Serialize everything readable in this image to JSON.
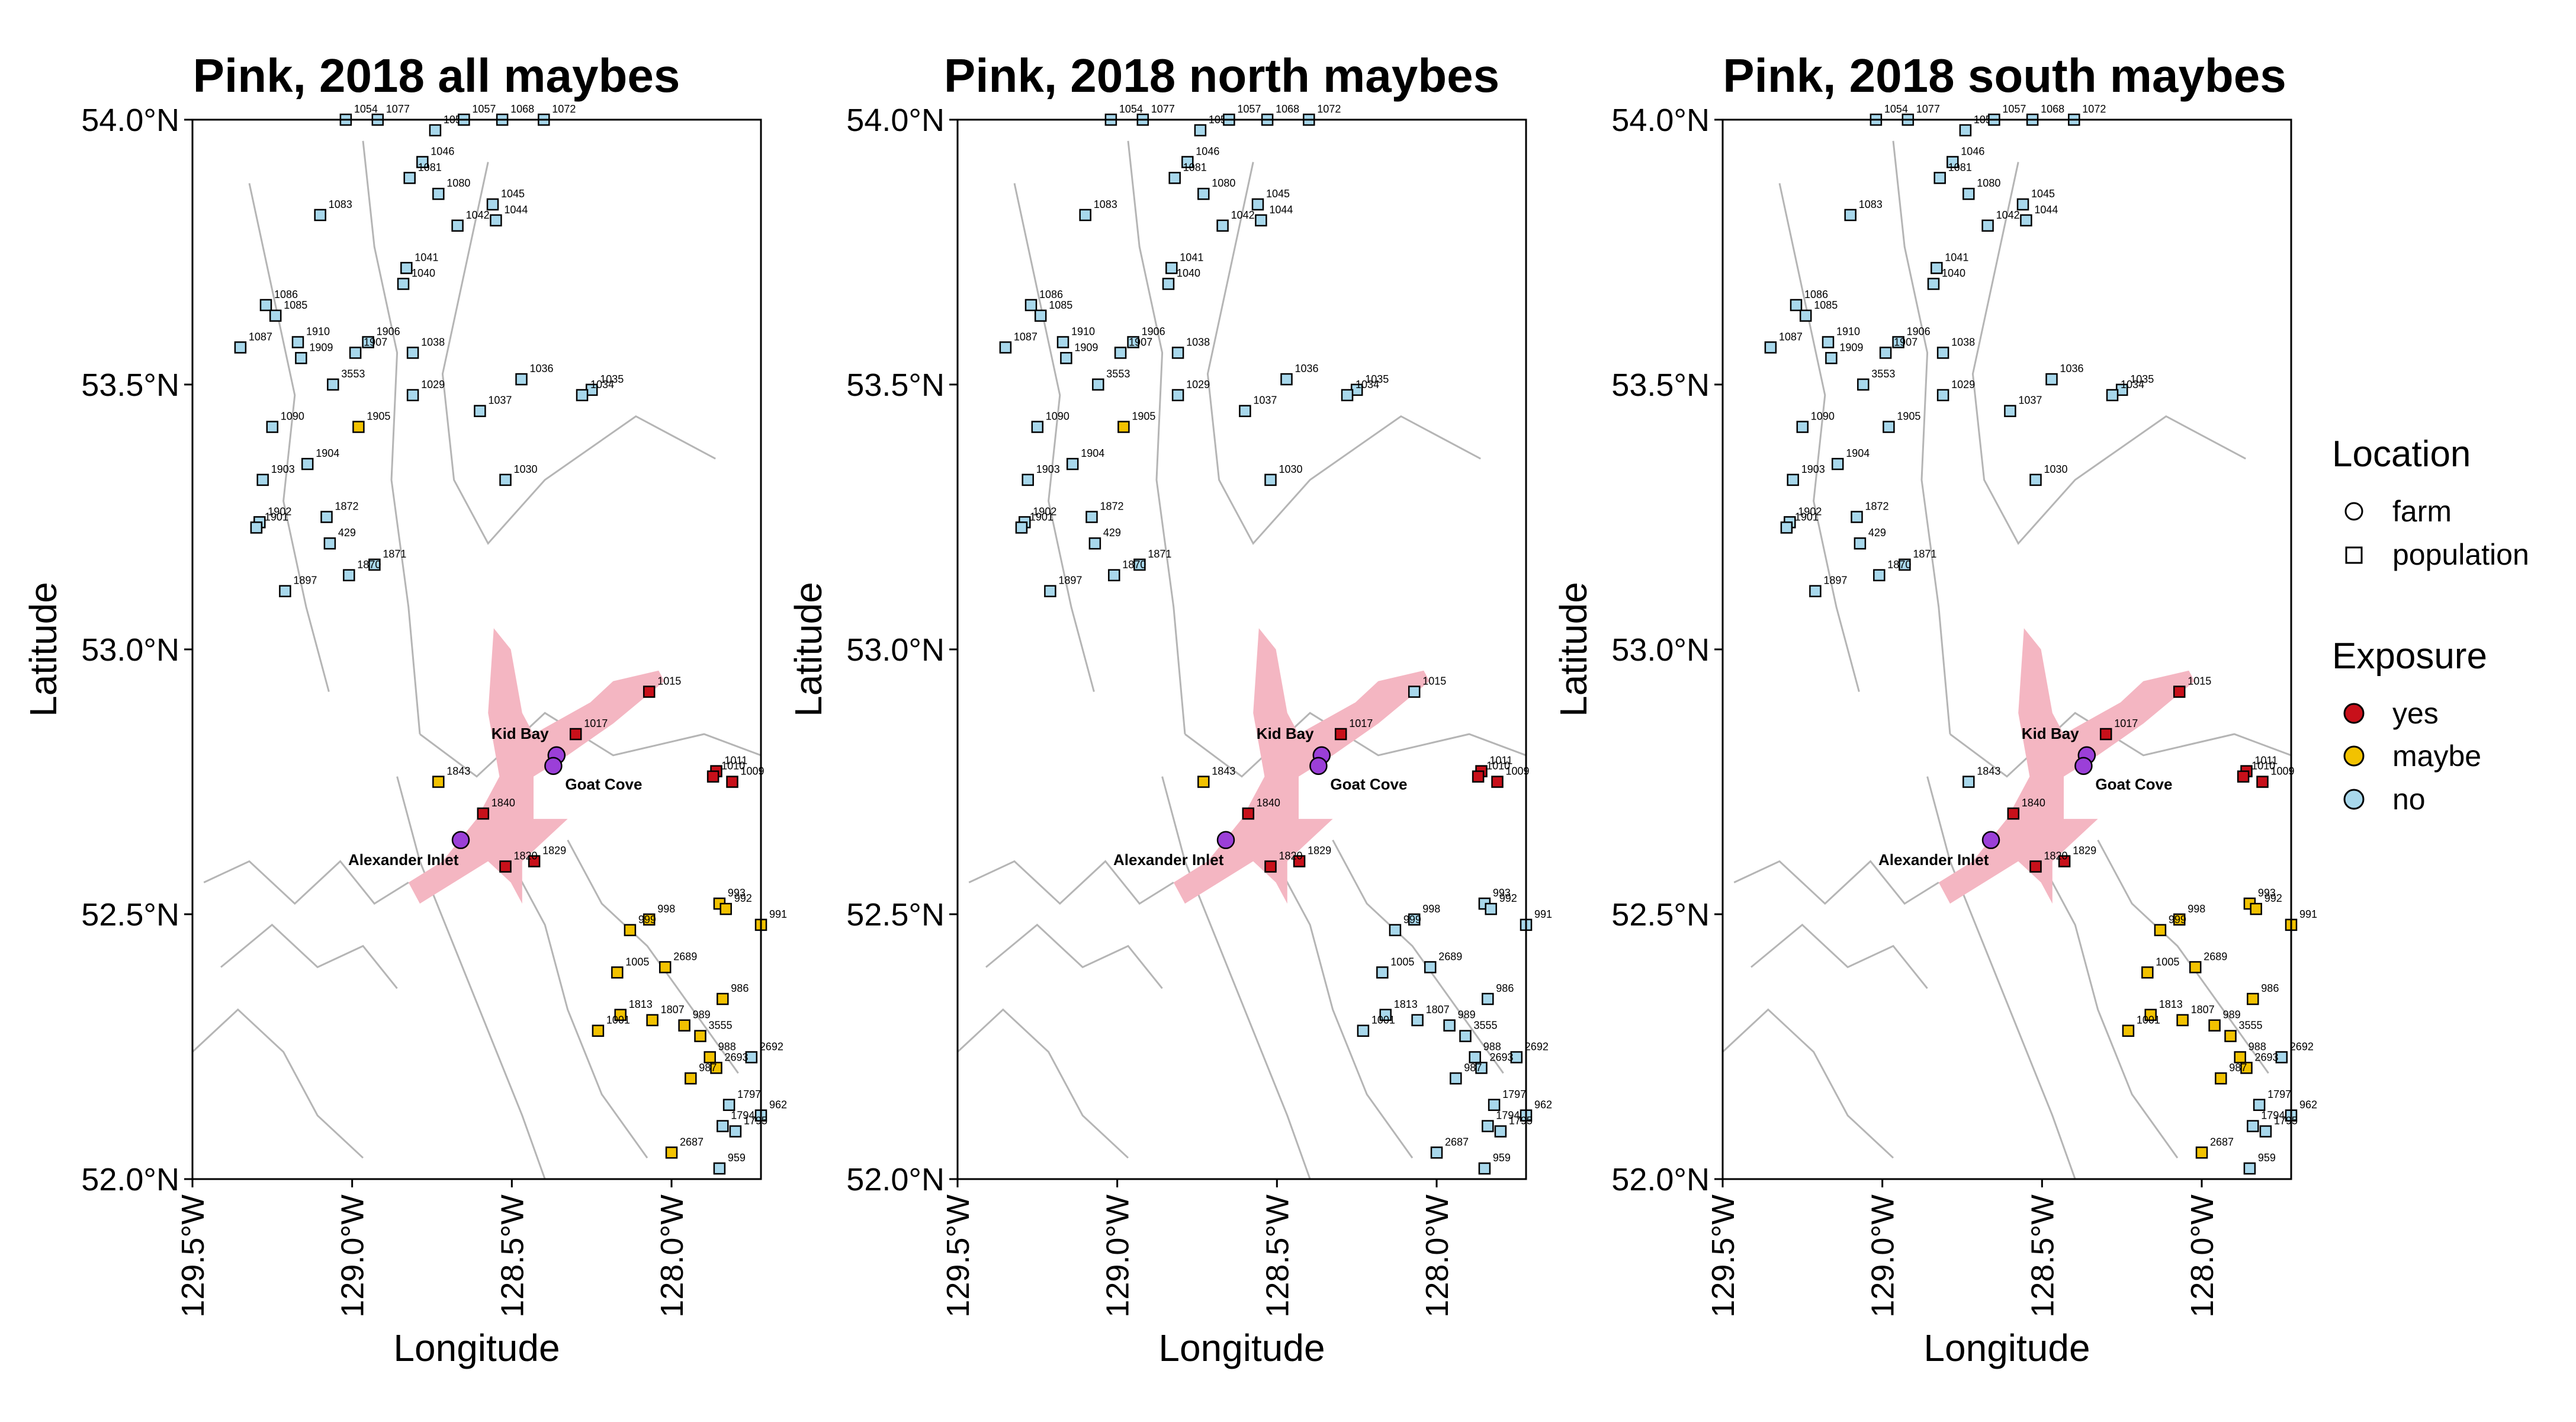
{
  "axes": {
    "x_title": "Longitude",
    "y_title": "Latitude",
    "xlim": [
      -129.5,
      -127.72
    ],
    "ylim": [
      52.0,
      54.0
    ],
    "x_ticks": [
      {
        "value": -129.5,
        "label": "129.5°W"
      },
      {
        "value": -129.0,
        "label": "129.0°W"
      },
      {
        "value": -128.5,
        "label": "128.5°W"
      },
      {
        "value": -128.0,
        "label": "128.0°W"
      }
    ],
    "y_ticks": [
      {
        "value": 54.0,
        "label": "54.0°N"
      },
      {
        "value": 53.5,
        "label": "53.5°N"
      },
      {
        "value": 53.0,
        "label": "53.0°N"
      },
      {
        "value": 52.5,
        "label": "52.5°N"
      },
      {
        "value": 52.0,
        "label": "52.0°N"
      }
    ]
  },
  "legend": {
    "location_title": "Location",
    "location_items": [
      {
        "key": "farm",
        "label": "farm",
        "shape": "circle"
      },
      {
        "key": "population",
        "label": "population",
        "shape": "square"
      }
    ],
    "exposure_title": "Exposure",
    "exposure_items": [
      {
        "key": "yes",
        "label": "yes"
      },
      {
        "key": "maybe",
        "label": "maybe"
      },
      {
        "key": "no",
        "label": "no"
      }
    ]
  },
  "colors": {
    "yes": "#c8101a",
    "maybe": "#f2c200",
    "no": "#a8d8ec",
    "farm": "#9b3fd8",
    "highlight": "#f4b6c2",
    "coastline": "#b5b5b5"
  },
  "farms": [
    {
      "name": "Kid Bay",
      "lon": -128.36,
      "lat": 52.8
    },
    {
      "name": "Goat Cove",
      "lon": -128.37,
      "lat": 52.78
    },
    {
      "name": "Alexander Inlet",
      "lon": -128.66,
      "lat": 52.64
    }
  ],
  "sites": [
    {
      "id": "1054",
      "lon": -129.02,
      "lat": 54.0,
      "north": "no",
      "south": "no"
    },
    {
      "id": "1077",
      "lon": -128.92,
      "lat": 54.0,
      "north": "no",
      "south": "no"
    },
    {
      "id": "1050",
      "lon": -128.74,
      "lat": 53.98,
      "north": "no",
      "south": "no"
    },
    {
      "id": "1057",
      "lon": -128.65,
      "lat": 54.0,
      "north": "no",
      "south": "no"
    },
    {
      "id": "1068",
      "lon": -128.53,
      "lat": 54.0,
      "north": "no",
      "south": "no"
    },
    {
      "id": "1072",
      "lon": -128.4,
      "lat": 54.0,
      "north": "no",
      "south": "no"
    },
    {
      "id": "1046",
      "lon": -128.78,
      "lat": 53.92,
      "north": "no",
      "south": "no"
    },
    {
      "id": "1081",
      "lon": -128.82,
      "lat": 53.89,
      "north": "no",
      "south": "no"
    },
    {
      "id": "1080",
      "lon": -128.73,
      "lat": 53.86,
      "north": "no",
      "south": "no"
    },
    {
      "id": "1045",
      "lon": -128.56,
      "lat": 53.84,
      "north": "no",
      "south": "no"
    },
    {
      "id": "1042",
      "lon": -128.67,
      "lat": 53.8,
      "north": "no",
      "south": "no"
    },
    {
      "id": "1044",
      "lon": -128.55,
      "lat": 53.81,
      "north": "no",
      "south": "no"
    },
    {
      "id": "1083",
      "lon": -129.1,
      "lat": 53.82,
      "north": "no",
      "south": "no"
    },
    {
      "id": "1041",
      "lon": -128.83,
      "lat": 53.72,
      "north": "no",
      "south": "no"
    },
    {
      "id": "1040",
      "lon": -128.84,
      "lat": 53.69,
      "north": "no",
      "south": "no"
    },
    {
      "id": "1086",
      "lon": -129.27,
      "lat": 53.65,
      "north": "no",
      "south": "no"
    },
    {
      "id": "1085",
      "lon": -129.24,
      "lat": 53.63,
      "north": "no",
      "south": "no"
    },
    {
      "id": "1087",
      "lon": -129.35,
      "lat": 53.57,
      "north": "no",
      "south": "no"
    },
    {
      "id": "1910",
      "lon": -129.17,
      "lat": 53.58,
      "north": "no",
      "south": "no"
    },
    {
      "id": "1909",
      "lon": -129.16,
      "lat": 53.55,
      "north": "no",
      "south": "no"
    },
    {
      "id": "1906",
      "lon": -128.95,
      "lat": 53.58,
      "north": "no",
      "south": "no"
    },
    {
      "id": "1907",
      "lon": -128.99,
      "lat": 53.56,
      "north": "no",
      "south": "no"
    },
    {
      "id": "1038",
      "lon": -128.81,
      "lat": 53.56,
      "north": "no",
      "south": "no"
    },
    {
      "id": "3553",
      "lon": -129.06,
      "lat": 53.5,
      "north": "no",
      "south": "no"
    },
    {
      "id": "1029",
      "lon": -128.81,
      "lat": 53.48,
      "north": "no",
      "south": "no"
    },
    {
      "id": "1037",
      "lon": -128.6,
      "lat": 53.45,
      "north": "no",
      "south": "no"
    },
    {
      "id": "1036",
      "lon": -128.47,
      "lat": 53.51,
      "north": "no",
      "south": "no"
    },
    {
      "id": "1035",
      "lon": -128.25,
      "lat": 53.49,
      "north": "no",
      "south": "no"
    },
    {
      "id": "1034",
      "lon": -128.28,
      "lat": 53.48,
      "north": "no",
      "south": "no"
    },
    {
      "id": "1090",
      "lon": -129.25,
      "lat": 53.42,
      "north": "no",
      "south": "no"
    },
    {
      "id": "1905",
      "lon": -128.98,
      "lat": 53.42,
      "north": "maybe",
      "south": "no"
    },
    {
      "id": "1904",
      "lon": -129.14,
      "lat": 53.35,
      "north": "no",
      "south": "no"
    },
    {
      "id": "1030",
      "lon": -128.52,
      "lat": 53.32,
      "north": "no",
      "south": "no"
    },
    {
      "id": "1903",
      "lon": -129.28,
      "lat": 53.32,
      "north": "no",
      "south": "no"
    },
    {
      "id": "1902",
      "lon": -129.29,
      "lat": 53.24,
      "north": "no",
      "south": "no"
    },
    {
      "id": "1872",
      "lon": -129.08,
      "lat": 53.25,
      "north": "no",
      "south": "no"
    },
    {
      "id": "1901",
      "lon": -129.3,
      "lat": 53.23,
      "north": "no",
      "south": "no"
    },
    {
      "id": "429",
      "lon": -129.07,
      "lat": 53.2,
      "north": "no",
      "south": "no"
    },
    {
      "id": "1871",
      "lon": -128.93,
      "lat": 53.16,
      "north": "no",
      "south": "no"
    },
    {
      "id": "1870",
      "lon": -129.01,
      "lat": 53.14,
      "north": "no",
      "south": "no"
    },
    {
      "id": "1897",
      "lon": -129.21,
      "lat": 53.11,
      "north": "no",
      "south": "no"
    },
    {
      "id": "1015",
      "lon": -128.07,
      "lat": 52.92,
      "north": "no",
      "south": "yes"
    },
    {
      "id": "1017",
      "lon": -128.3,
      "lat": 52.84,
      "north": "yes",
      "south": "yes"
    },
    {
      "id": "1011",
      "lon": -127.86,
      "lat": 52.77,
      "north": "yes",
      "south": "yes"
    },
    {
      "id": "1010",
      "lon": -127.87,
      "lat": 52.76,
      "north": "yes",
      "south": "yes"
    },
    {
      "id": "1009",
      "lon": -127.81,
      "lat": 52.75,
      "north": "yes",
      "south": "yes"
    },
    {
      "id": "1843",
      "lon": -128.73,
      "lat": 52.75,
      "north": "maybe",
      "south": "no"
    },
    {
      "id": "1840",
      "lon": -128.59,
      "lat": 52.69,
      "north": "yes",
      "south": "yes"
    },
    {
      "id": "1829",
      "lon": -128.43,
      "lat": 52.6,
      "north": "yes",
      "south": "yes"
    },
    {
      "id": "1820",
      "lon": -128.52,
      "lat": 52.59,
      "north": "yes",
      "south": "yes"
    },
    {
      "id": "993",
      "lon": -127.85,
      "lat": 52.52,
      "north": "no",
      "south": "maybe"
    },
    {
      "id": "992",
      "lon": -127.83,
      "lat": 52.51,
      "north": "no",
      "south": "maybe"
    },
    {
      "id": "998",
      "lon": -128.07,
      "lat": 52.49,
      "north": "no",
      "south": "maybe"
    },
    {
      "id": "999",
      "lon": -128.13,
      "lat": 52.47,
      "north": "no",
      "south": "maybe"
    },
    {
      "id": "991",
      "lon": -127.72,
      "lat": 52.48,
      "north": "no",
      "south": "maybe"
    },
    {
      "id": "2689",
      "lon": -128.02,
      "lat": 52.4,
      "north": "no",
      "south": "maybe"
    },
    {
      "id": "1005",
      "lon": -128.17,
      "lat": 52.39,
      "north": "no",
      "south": "maybe"
    },
    {
      "id": "986",
      "lon": -127.84,
      "lat": 52.34,
      "north": "no",
      "south": "maybe"
    },
    {
      "id": "1813",
      "lon": -128.16,
      "lat": 52.31,
      "north": "no",
      "south": "maybe"
    },
    {
      "id": "1807",
      "lon": -128.06,
      "lat": 52.3,
      "north": "no",
      "south": "maybe"
    },
    {
      "id": "1001",
      "lon": -128.23,
      "lat": 52.28,
      "north": "no",
      "south": "maybe"
    },
    {
      "id": "989",
      "lon": -127.96,
      "lat": 52.29,
      "north": "no",
      "south": "maybe"
    },
    {
      "id": "3555",
      "lon": -127.91,
      "lat": 52.27,
      "north": "no",
      "south": "maybe"
    },
    {
      "id": "2692",
      "lon": -127.75,
      "lat": 52.23,
      "north": "no",
      "south": "no"
    },
    {
      "id": "988",
      "lon": -127.88,
      "lat": 52.23,
      "north": "no",
      "south": "maybe"
    },
    {
      "id": "2693",
      "lon": -127.86,
      "lat": 52.21,
      "north": "no",
      "south": "maybe"
    },
    {
      "id": "987",
      "lon": -127.94,
      "lat": 52.19,
      "north": "no",
      "south": "maybe"
    },
    {
      "id": "1797",
      "lon": -127.82,
      "lat": 52.14,
      "north": "no",
      "south": "no"
    },
    {
      "id": "962",
      "lon": -127.72,
      "lat": 52.12,
      "north": "no",
      "south": "no"
    },
    {
      "id": "1794",
      "lon": -127.84,
      "lat": 52.1,
      "north": "no",
      "south": "no"
    },
    {
      "id": "1795",
      "lon": -127.8,
      "lat": 52.09,
      "north": "no",
      "south": "no"
    },
    {
      "id": "2687",
      "lon": -128.0,
      "lat": 52.05,
      "north": "no",
      "south": "maybe"
    },
    {
      "id": "959",
      "lon": -127.85,
      "lat": 52.02,
      "north": "no",
      "south": "no"
    }
  ],
  "panels": [
    {
      "title": "Pink, 2018 all maybes",
      "status": {
        "1905": "maybe",
        "1843": "maybe",
        "1015": "yes",
        "993": "maybe",
        "992": "maybe",
        "998": "maybe",
        "999": "maybe",
        "991": "maybe",
        "2689": "maybe",
        "1005": "maybe",
        "986": "maybe",
        "1813": "maybe",
        "1807": "maybe",
        "1001": "maybe",
        "989": "maybe",
        "3555": "maybe",
        "988": "maybe",
        "2693": "maybe",
        "987": "maybe",
        "2687": "maybe"
      }
    },
    {
      "title": "Pink, 2018 north maybes",
      "status": {}
    },
    {
      "title": "Pink, 2018 south maybes",
      "status": {}
    }
  ]
}
